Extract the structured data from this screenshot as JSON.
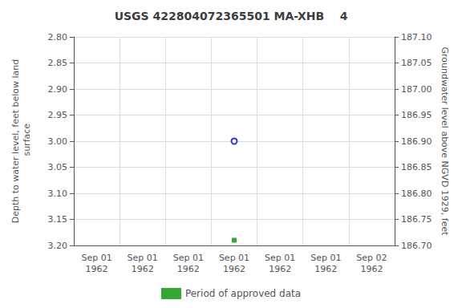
{
  "chart_data": {
    "type": "scatter",
    "title": "USGS 422804072365501 MA-XHB    4",
    "ylabel": "Depth to water level, feet below land\n surface",
    "y2label": "Groundwater level above NGVD 1929, feet",
    "categories": [
      "Sep 01\n1962",
      "Sep 01\n1962",
      "Sep 01\n1962",
      "Sep 01\n1962",
      "Sep 01\n1962",
      "Sep 01\n1962",
      "Sep 02\n1962"
    ],
    "series": [
      {
        "values": [
          null,
          null,
          null,
          3.0,
          null,
          null,
          null
        ],
        "color": "#0000cc",
        "marker": "open_circle"
      },
      {
        "name": "Period of approved data",
        "values": [
          null,
          null,
          null,
          3.19,
          null,
          null,
          null
        ],
        "color": "#009000",
        "marker": "square"
      }
    ],
    "ylim": [
      3.2,
      2.8
    ],
    "yticks": [
      {
        "value": 2.8,
        "label": "2.80"
      },
      {
        "value": 2.85,
        "label": "2.85"
      },
      {
        "value": 2.9,
        "label": "2.90"
      },
      {
        "value": 2.95,
        "label": "2.95"
      },
      {
        "value": 3.0,
        "label": "3.00"
      },
      {
        "value": 3.05,
        "label": "3.05"
      },
      {
        "value": 3.1,
        "label": "3.10"
      },
      {
        "value": 3.15,
        "label": "3.15"
      },
      {
        "value": 3.2,
        "label": "3.20"
      }
    ],
    "y2lim": [
      186.7,
      187.1
    ],
    "y2ticks": [
      {
        "value": 186.7,
        "label": "186.70"
      },
      {
        "value": 186.75,
        "label": "186.75"
      },
      {
        "value": 186.8,
        "label": "186.80"
      },
      {
        "value": 186.85,
        "label": "186.85"
      },
      {
        "value": 186.9,
        "label": "186.90"
      },
      {
        "value": 186.95,
        "label": "186.95"
      },
      {
        "value": 187.0,
        "label": "187.00"
      },
      {
        "value": 187.05,
        "label": "187.05"
      },
      {
        "value": 187.1,
        "label": "187.10"
      }
    ],
    "grid": true,
    "legend": "bottom"
  }
}
